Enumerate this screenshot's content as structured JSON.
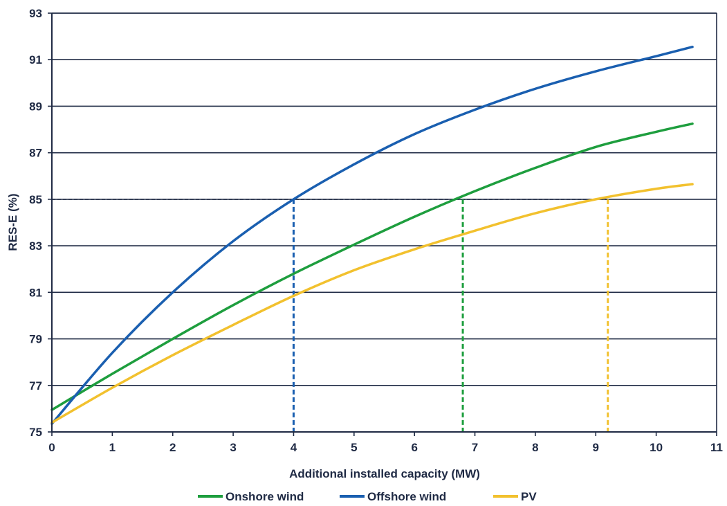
{
  "chart_data": {
    "type": "line",
    "title": "",
    "xlabel": "Additional installed capacity (MW)",
    "ylabel": "RES-E (%)",
    "xlim": [
      0,
      11
    ],
    "ylim": [
      75,
      93
    ],
    "xticks": [
      0,
      1,
      2,
      3,
      4,
      5,
      6,
      7,
      8,
      9,
      10,
      11
    ],
    "yticks": [
      75,
      77,
      79,
      81,
      83,
      85,
      87,
      89,
      91,
      93
    ],
    "grid": "horizontal",
    "legend_position": "bottom",
    "series": [
      {
        "name": "Onshore wind",
        "color": "#1e9e3e",
        "x": [
          0,
          1,
          2,
          3,
          4,
          5,
          6,
          7,
          8,
          9,
          10,
          10.6
        ],
        "y": [
          75.95,
          77.5,
          79.0,
          80.45,
          81.8,
          83.05,
          84.25,
          85.35,
          86.35,
          87.25,
          87.9,
          88.25
        ]
      },
      {
        "name": "Offshore wind",
        "color": "#1a5fb0",
        "x": [
          0,
          1,
          2,
          3,
          4,
          5,
          6,
          7,
          8,
          9,
          10,
          10.6
        ],
        "y": [
          75.35,
          78.4,
          81.0,
          83.2,
          85.0,
          86.5,
          87.8,
          88.85,
          89.75,
          90.5,
          91.15,
          91.55
        ]
      },
      {
        "name": "PV",
        "color": "#f2c12e",
        "x": [
          0,
          1,
          2,
          3,
          4,
          5,
          6,
          7,
          8,
          9,
          10,
          10.6
        ],
        "y": [
          75.4,
          76.9,
          78.3,
          79.6,
          80.85,
          81.95,
          82.85,
          83.65,
          84.4,
          85.0,
          85.45,
          85.65
        ]
      }
    ],
    "reference_lines": [
      {
        "y": 85,
        "x_end": 9.2,
        "color": "#1f2a44"
      },
      {
        "x": 4.0,
        "y_top": 85,
        "color": "#1a5fb0"
      },
      {
        "x": 6.8,
        "y_top": 85,
        "color": "#1e9e3e"
      },
      {
        "x": 9.2,
        "y_top": 85,
        "color": "#f2c12e"
      }
    ]
  }
}
